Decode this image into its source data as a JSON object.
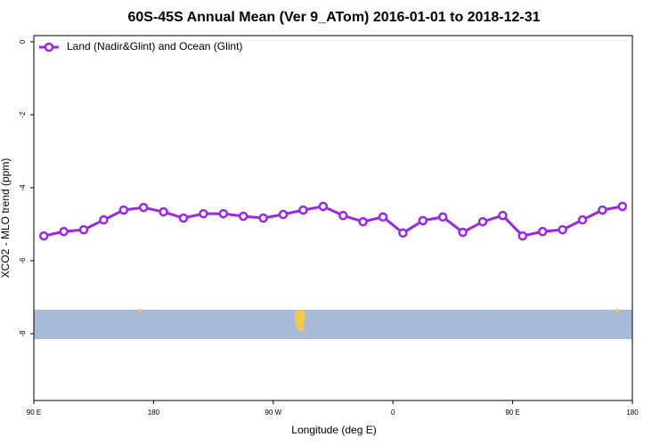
{
  "chart_data": {
    "type": "line",
    "title": "60S-45S Annual Mean (Ver 9_ATom)   2016-01-01 to 2018-12-31",
    "xlabel": "Longitude (deg E)",
    "ylabel": "XCO2 - MLO trend (ppm)",
    "xlim": [
      90,
      540
    ],
    "xticks": [
      {
        "value": 90,
        "label": "90 E"
      },
      {
        "value": 180,
        "label": "180"
      },
      {
        "value": 270,
        "label": "90 W"
      },
      {
        "value": 360,
        "label": "0"
      },
      {
        "value": 450,
        "label": "90 E"
      },
      {
        "value": 540,
        "label": "180"
      }
    ],
    "ylim": [
      -9.83,
      0.17
    ],
    "yticks": [
      0,
      -2,
      -4,
      -6,
      -8
    ],
    "legend": "top-left",
    "x": [
      97.5,
      112.5,
      127.5,
      142.5,
      157.5,
      172.5,
      187.5,
      202.5,
      217.5,
      232.5,
      247.5,
      262.5,
      277.5,
      292.5,
      307.5,
      322.5,
      337.5,
      352.5,
      367.5,
      382.5,
      397.5,
      412.5,
      427.5,
      442.5,
      457.5,
      472.5,
      487.5,
      502.5,
      517.5,
      532.5
    ],
    "series": [
      {
        "name": "Land (Nadir&Glint) and Ocean (Glint)",
        "color": "#9b27e6",
        "values": [
          -5.32,
          -5.2,
          -5.15,
          -4.88,
          -4.61,
          -4.54,
          -4.66,
          -4.83,
          -4.71,
          -4.71,
          -4.78,
          -4.83,
          -4.73,
          -4.61,
          -4.51,
          -4.76,
          -4.93,
          -4.8,
          -5.24,
          -4.9,
          -4.8,
          -5.22,
          -4.93,
          -4.76,
          -5.32,
          -5.2,
          -5.15,
          -4.88,
          -4.61,
          -4.51
        ]
      }
    ]
  }
}
